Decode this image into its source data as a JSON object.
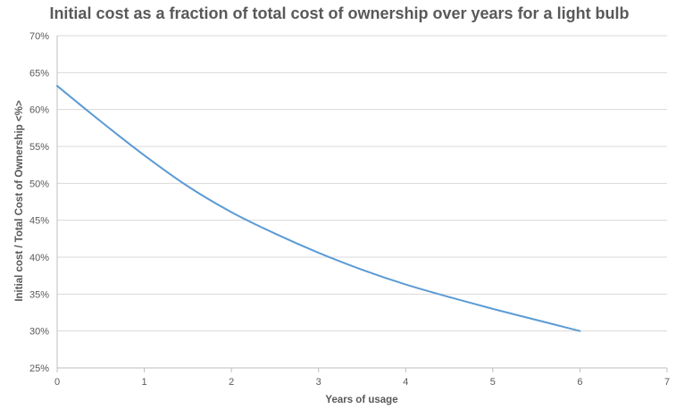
{
  "chart_data": {
    "type": "line",
    "title": "Initial cost as a fraction of total cost of ownership over years for a light bulb",
    "xlabel": "Years of usage",
    "ylabel": "Initial cost / Total Cost of Ownership <%>",
    "xlim": [
      0,
      7
    ],
    "ylim": [
      25,
      70
    ],
    "x_ticks": [
      "0",
      "1",
      "2",
      "3",
      "4",
      "5",
      "6",
      "7"
    ],
    "y_ticks": [
      "25%",
      "30%",
      "35%",
      "40%",
      "45%",
      "50%",
      "55%",
      "60%",
      "65%",
      "70%"
    ],
    "grid": "horizontal",
    "legend": "none",
    "series": [
      {
        "color": "#5b9bd5",
        "x": [
          0,
          0.5,
          1,
          1.5,
          2,
          2.5,
          3,
          3.5,
          4,
          4.5,
          5,
          5.5,
          6
        ],
        "y": [
          63.2,
          58.4,
          53.8,
          49.6,
          46.1,
          43.2,
          40.6,
          38.3,
          36.3,
          34.6,
          33.0,
          31.5,
          30.0
        ]
      }
    ]
  }
}
